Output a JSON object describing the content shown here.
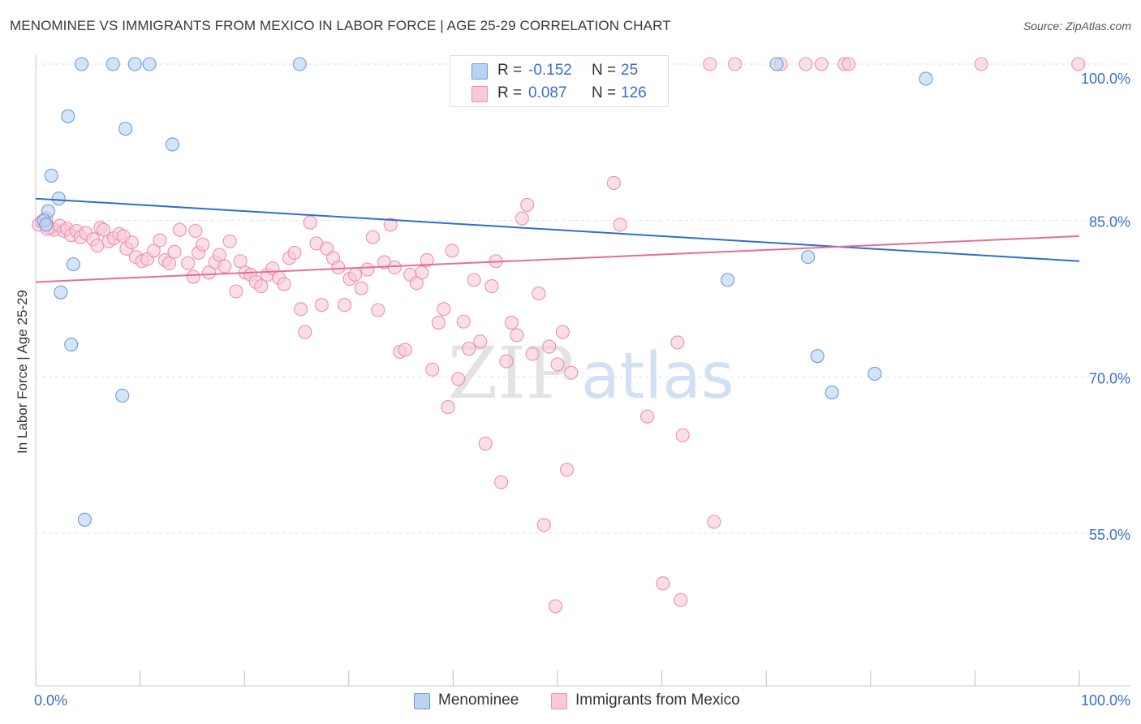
{
  "title": "MENOMINEE VS IMMIGRANTS FROM MEXICO IN LABOR FORCE | AGE 25-29 CORRELATION CHART",
  "source": "Source: ZipAtlas.com",
  "watermark": {
    "zip": "ZIP",
    "atlas": "atlas"
  },
  "legend": {
    "r_label": "R =",
    "n_label": "N =",
    "rows": [
      {
        "r": "-0.152",
        "n": "25"
      },
      {
        "r": "0.087",
        "n": "126"
      }
    ]
  },
  "bottom_legend": [
    "Menominee",
    "Immigrants from Mexico"
  ],
  "colors": {
    "menominee_fill": "#b9d3f3",
    "menominee_stroke": "#6a9be0",
    "menominee_line": "#2f6ecb",
    "mexico_fill": "#f9c9d8",
    "mexico_stroke": "#ee8fae",
    "mexico_line": "#e56d97",
    "tick_text": "#3d6ec9"
  },
  "chart_data": {
    "type": "scatter",
    "title": "MENOMINEE VS IMMIGRANTS FROM MEXICO IN LABOR FORCE | AGE 25-29 CORRELATION CHART",
    "xlabel": "",
    "ylabel": "In Labor Force | Age 25-29",
    "xlim": [
      0,
      100
    ],
    "ylim": [
      41,
      102
    ],
    "x_tick_labels": [
      "0.0%",
      "100.0%"
    ],
    "y_ticks": [
      55,
      70,
      85,
      100
    ],
    "y_tick_labels": [
      "55.0%",
      "70.0%",
      "85.0%",
      "100.0%"
    ],
    "grid": true,
    "legend_position": "top-center",
    "series": [
      {
        "name": "Menominee",
        "trend": {
          "x": [
            0,
            100
          ],
          "y": [
            87.1,
            81.1
          ]
        },
        "points": [
          [
            4.4,
            100
          ],
          [
            7.4,
            100
          ],
          [
            9.5,
            100
          ],
          [
            10.9,
            100
          ],
          [
            25.3,
            100
          ],
          [
            71.0,
            100
          ],
          [
            85.3,
            98.6
          ],
          [
            3.1,
            95.0
          ],
          [
            8.6,
            93.8
          ],
          [
            13.1,
            92.3
          ],
          [
            1.5,
            89.3
          ],
          [
            2.2,
            87.1
          ],
          [
            1.2,
            85.9
          ],
          [
            0.8,
            85.0
          ],
          [
            3.6,
            80.8
          ],
          [
            66.3,
            79.3
          ],
          [
            2.4,
            78.1
          ],
          [
            74.0,
            81.5
          ],
          [
            3.4,
            73.1
          ],
          [
            74.9,
            72.0
          ],
          [
            80.4,
            70.3
          ],
          [
            76.3,
            68.5
          ],
          [
            8.3,
            68.2
          ],
          [
            4.7,
            56.3
          ],
          [
            1.0,
            84.6
          ]
        ]
      },
      {
        "name": "Immigrants from Mexico",
        "trend": {
          "x": [
            0,
            100
          ],
          "y": [
            79.1,
            83.5
          ]
        },
        "points": [
          [
            0.3,
            84.6
          ],
          [
            0.6,
            84.9
          ],
          [
            1.0,
            85.2
          ],
          [
            1.4,
            84.3
          ],
          [
            1.8,
            84.1
          ],
          [
            2.3,
            84.5
          ],
          [
            2.7,
            84.0
          ],
          [
            3.0,
            84.2
          ],
          [
            3.4,
            83.6
          ],
          [
            3.9,
            84.0
          ],
          [
            4.3,
            83.4
          ],
          [
            4.8,
            83.8
          ],
          [
            5.5,
            83.2
          ],
          [
            5.9,
            82.6
          ],
          [
            6.2,
            84.3
          ],
          [
            6.5,
            84.1
          ],
          [
            7.0,
            83.0
          ],
          [
            7.5,
            83.3
          ],
          [
            8.0,
            83.7
          ],
          [
            8.4,
            83.5
          ],
          [
            8.7,
            82.3
          ],
          [
            9.2,
            82.9
          ],
          [
            9.6,
            81.5
          ],
          [
            10.2,
            81.1
          ],
          [
            10.7,
            81.3
          ],
          [
            11.3,
            82.1
          ],
          [
            11.9,
            83.1
          ],
          [
            12.4,
            81.2
          ],
          [
            12.8,
            80.9
          ],
          [
            13.3,
            82.0
          ],
          [
            13.8,
            84.1
          ],
          [
            14.6,
            80.9
          ],
          [
            15.1,
            79.6
          ],
          [
            15.6,
            81.9
          ],
          [
            16.0,
            82.7
          ],
          [
            16.6,
            80.0
          ],
          [
            17.2,
            81.0
          ],
          [
            17.6,
            81.7
          ],
          [
            18.1,
            80.6
          ],
          [
            18.6,
            83.0
          ],
          [
            19.2,
            78.2
          ],
          [
            19.6,
            81.1
          ],
          [
            20.1,
            80.0
          ],
          [
            20.6,
            79.8
          ],
          [
            21.1,
            79.1
          ],
          [
            21.6,
            78.7
          ],
          [
            22.2,
            79.8
          ],
          [
            22.7,
            80.4
          ],
          [
            23.3,
            79.5
          ],
          [
            23.8,
            78.9
          ],
          [
            24.3,
            81.4
          ],
          [
            24.8,
            81.9
          ],
          [
            25.4,
            76.5
          ],
          [
            25.8,
            74.3
          ],
          [
            26.3,
            84.8
          ],
          [
            26.9,
            82.8
          ],
          [
            27.4,
            76.9
          ],
          [
            27.9,
            82.3
          ],
          [
            28.5,
            81.4
          ],
          [
            29.0,
            80.5
          ],
          [
            29.6,
            76.9
          ],
          [
            30.1,
            79.4
          ],
          [
            30.6,
            79.8
          ],
          [
            31.2,
            78.5
          ],
          [
            31.8,
            80.3
          ],
          [
            32.3,
            83.4
          ],
          [
            32.8,
            76.4
          ],
          [
            33.4,
            81.0
          ],
          [
            34.0,
            84.6
          ],
          [
            34.4,
            80.5
          ],
          [
            34.9,
            72.4
          ],
          [
            35.4,
            72.6
          ],
          [
            35.9,
            79.8
          ],
          [
            36.5,
            79.0
          ],
          [
            37.0,
            80.0
          ],
          [
            37.5,
            81.2
          ],
          [
            38.0,
            70.7
          ],
          [
            38.6,
            75.2
          ],
          [
            39.1,
            76.5
          ],
          [
            39.5,
            67.1
          ],
          [
            39.9,
            82.1
          ],
          [
            40.5,
            69.8
          ],
          [
            41.0,
            75.3
          ],
          [
            41.5,
            72.7
          ],
          [
            42.0,
            79.3
          ],
          [
            42.6,
            73.4
          ],
          [
            43.1,
            63.6
          ],
          [
            43.7,
            78.7
          ],
          [
            44.1,
            81.1
          ],
          [
            44.6,
            59.9
          ],
          [
            45.1,
            71.5
          ],
          [
            45.6,
            75.2
          ],
          [
            46.1,
            74.0
          ],
          [
            46.6,
            85.2
          ],
          [
            47.1,
            86.5
          ],
          [
            47.6,
            72.2
          ],
          [
            48.2,
            78.0
          ],
          [
            48.7,
            55.8
          ],
          [
            49.2,
            72.9
          ],
          [
            49.8,
            48.0
          ],
          [
            50.0,
            71.2
          ],
          [
            50.5,
            74.3
          ],
          [
            50.9,
            61.1
          ],
          [
            51.3,
            70.4
          ],
          [
            52.3,
            100
          ],
          [
            53.3,
            100
          ],
          [
            55.4,
            88.6
          ],
          [
            56.0,
            84.6
          ],
          [
            58.6,
            66.2
          ],
          [
            60.1,
            50.2
          ],
          [
            61.5,
            73.3
          ],
          [
            61.8,
            48.6
          ],
          [
            62.0,
            64.4
          ],
          [
            64.6,
            100
          ],
          [
            65.0,
            56.1
          ],
          [
            67.0,
            100
          ],
          [
            71.4,
            100
          ],
          [
            73.8,
            100
          ],
          [
            75.3,
            100
          ],
          [
            77.5,
            100
          ],
          [
            77.9,
            100
          ],
          [
            90.6,
            100
          ],
          [
            99.9,
            100
          ],
          [
            1.1,
            84.2
          ],
          [
            15.3,
            84.0
          ]
        ]
      }
    ]
  }
}
